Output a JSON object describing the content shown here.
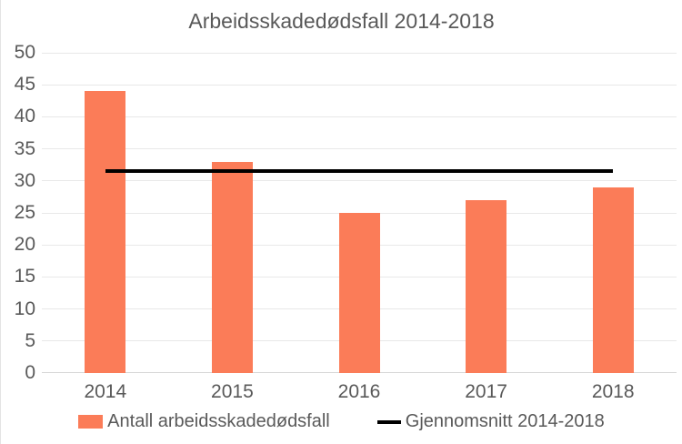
{
  "chart_data": {
    "type": "bar",
    "title": "Arbeidsskadedødsfall 2014-2018",
    "categories": [
      "2014",
      "2015",
      "2016",
      "2017",
      "2018"
    ],
    "series": [
      {
        "name": "Antall arbeidsskadedødsfall",
        "type": "bar",
        "color": "#FB7C58",
        "values": [
          44,
          33,
          25,
          27,
          29
        ]
      },
      {
        "name": "Gjennomsnitt 2014-2018",
        "type": "line",
        "color": "#000000",
        "values": [
          31.6,
          31.6,
          31.6,
          31.6,
          31.6
        ]
      }
    ],
    "average_value": 31.6,
    "xlabel": "",
    "ylabel": "",
    "ylim": [
      0,
      50
    ],
    "yticks": [
      0,
      5,
      10,
      15,
      20,
      25,
      30,
      35,
      40,
      45,
      50
    ],
    "grid": true,
    "legend_position": "bottom",
    "colors": {
      "bar": "#FB7C58",
      "average_line": "#000000",
      "text": "#595959",
      "gridline": "#E8E8E8",
      "axis_line": "#D6D6D6",
      "background": "#FFFFFF"
    }
  }
}
